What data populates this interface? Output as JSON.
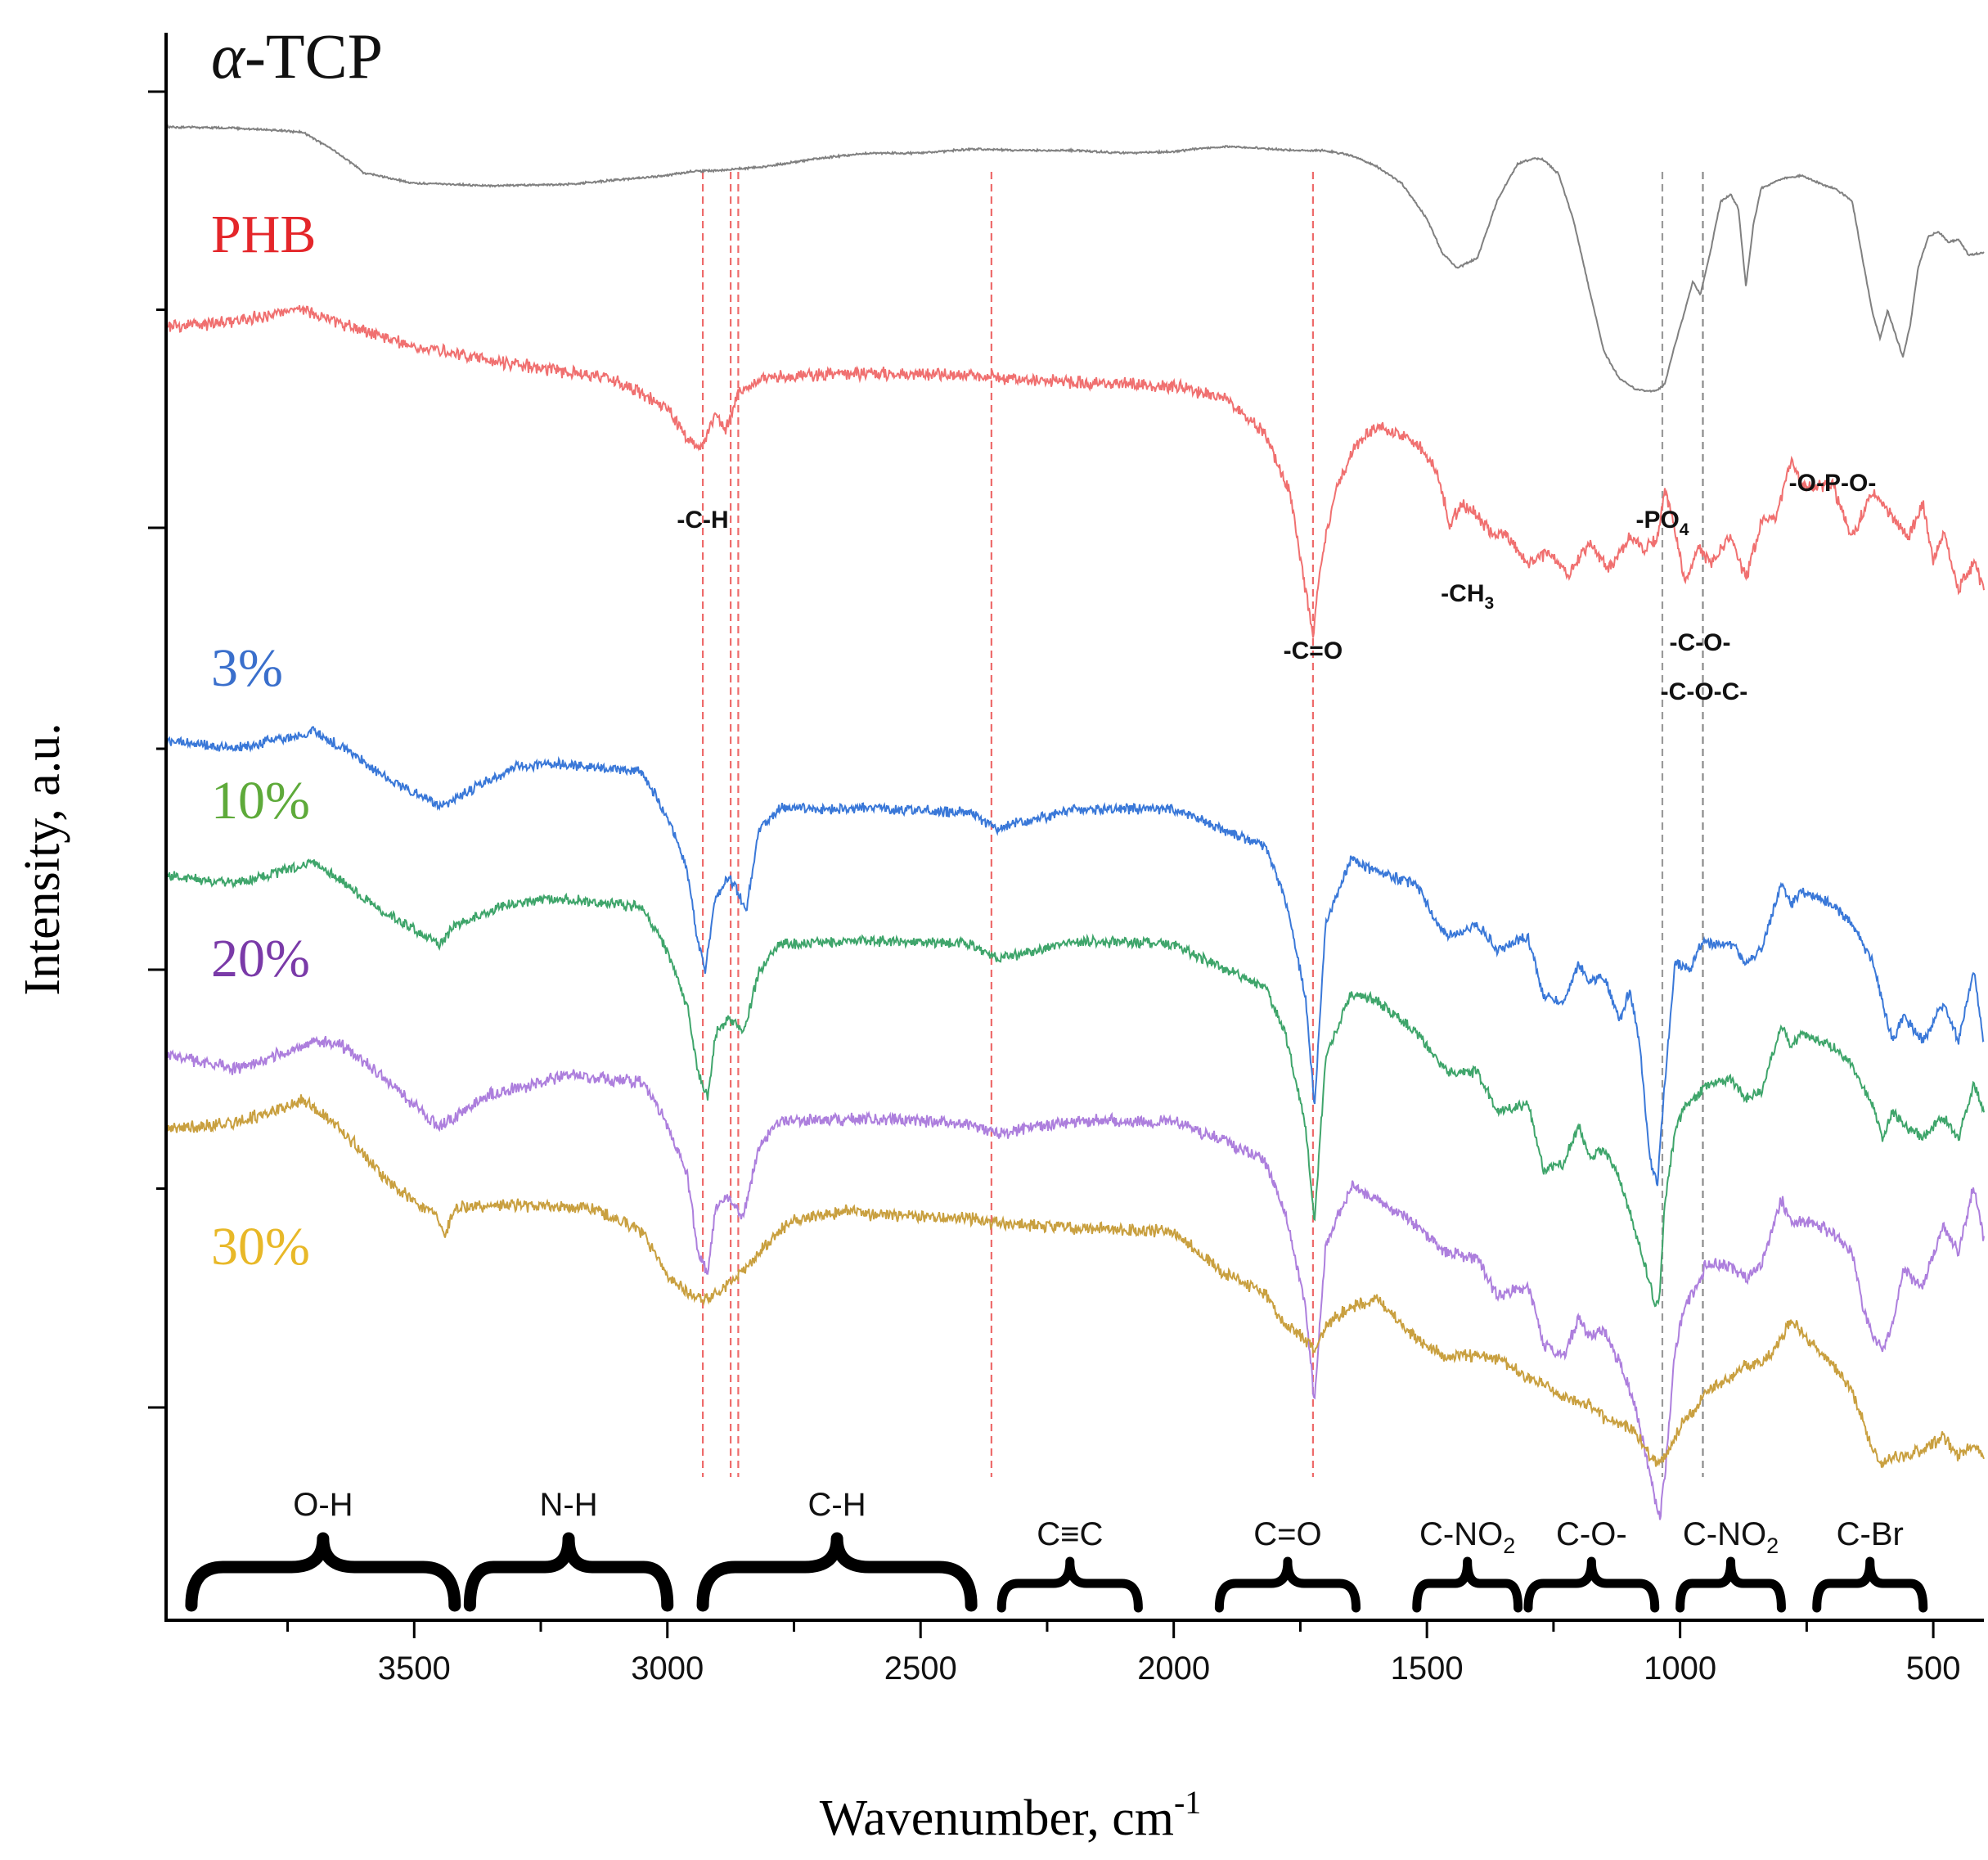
{
  "chart_data": {
    "type": "line",
    "title": "",
    "xlabel": "Wavenumber, cm",
    "xlabel_sup": "-1",
    "ylabel": "Intensity, a.u.",
    "xlim": [
      3990,
      400
    ],
    "x_reversed": true,
    "x_ticks": [
      3500,
      3000,
      2500,
      2000,
      1500,
      1000,
      500
    ],
    "y_ticks": "unlabeled",
    "grid": false,
    "legend": "inline labels at left",
    "series": [
      {
        "name": "α-TCP",
        "name_parts": [
          "α",
          "-TCP"
        ],
        "color": "#808080",
        "label_color": "#111111",
        "noise": 1,
        "x": [
          3990,
          3850,
          3720,
          3650,
          3600,
          3500,
          3350,
          3200,
          3000,
          2950,
          2900,
          2800,
          2700,
          2600,
          2500,
          2400,
          2300,
          2200,
          2100,
          2000,
          1960,
          1900,
          1800,
          1760,
          1700,
          1650,
          1600,
          1550,
          1500,
          1470,
          1440,
          1400,
          1360,
          1320,
          1290,
          1270,
          1240,
          1210,
          1180,
          1150,
          1120,
          1090,
          1060,
          1045,
          1030,
          1010,
          990,
          975,
          960,
          940,
          920,
          900,
          885,
          870,
          855,
          840,
          800,
          760,
          720,
          690,
          660,
          640,
          620,
          605,
          590,
          575,
          560,
          545,
          530,
          510,
          490,
          470,
          450,
          430,
          400
        ],
        "values": [
          0.0,
          -1.0,
          -4.0,
          -20.0,
          -35.0,
          -43.0,
          -45.0,
          -44.0,
          -37.0,
          -34.0,
          -33.5,
          -30.0,
          -24.0,
          -20.0,
          -20.0,
          -17.0,
          -18.0,
          -18.0,
          -20.0,
          -19.0,
          -17.0,
          -15.0,
          -17.0,
          -18.0,
          -18.0,
          -22.0,
          -30.0,
          -43.0,
          -70.0,
          -96.0,
          -108.0,
          -100.0,
          -55.0,
          -28.0,
          -24.0,
          -25.0,
          -36.0,
          -72.0,
          -123.0,
          -172.0,
          -192.0,
          -200.0,
          -202.0,
          -201.0,
          -196.0,
          -166.0,
          -140.0,
          -118.0,
          -128.0,
          -95.0,
          -57.0,
          -52.0,
          -62.0,
          -122.0,
          -74.0,
          -47.0,
          -40.0,
          -37.0,
          -44.0,
          -48.0,
          -57.0,
          -100.0,
          -142.0,
          -162.0,
          -140.0,
          -158.0,
          -176.0,
          -150.0,
          -108.0,
          -84.0,
          -80.0,
          -88.0,
          -86.0,
          -98.0,
          -96.0
        ]
      },
      {
        "name": "PHB",
        "color": "#f07070",
        "label_color": "#e4262a",
        "noise": 6,
        "x": [
          3990,
          3850,
          3720,
          3650,
          3500,
          3300,
          3100,
          3000,
          2960,
          2935,
          2905,
          2885,
          2860,
          2800,
          2600,
          2400,
          2200,
          2000,
          1900,
          1820,
          1770,
          1740,
          1725,
          1710,
          1680,
          1640,
          1600,
          1520,
          1480,
          1455,
          1430,
          1400,
          1380,
          1340,
          1300,
          1260,
          1220,
          1180,
          1140,
          1100,
          1070,
          1045,
          1030,
          1010,
          990,
          965,
          940,
          900,
          870,
          840,
          810,
          780,
          760,
          700,
          660,
          620,
          580,
          550,
          520,
          500,
          480,
          450,
          420,
          400
        ],
        "values": [
          0.0,
          5.0,
          14.0,
          4.0,
          -15.0,
          -28.0,
          -40.0,
          -62.0,
          -86.0,
          -92.0,
          -68.0,
          -78.0,
          -50.0,
          -38.0,
          -35.0,
          -37.0,
          -42.0,
          -45.0,
          -55.0,
          -80.0,
          -128.0,
          -200.0,
          -235.0,
          -180.0,
          -125.0,
          -90.0,
          -75.0,
          -88.0,
          -110.0,
          -150.0,
          -135.0,
          -143.0,
          -155.0,
          -160.0,
          -180.0,
          -172.0,
          -188.0,
          -165.0,
          -185.0,
          -160.0,
          -170.0,
          -160.0,
          -125.0,
          -155.0,
          -195.0,
          -168.0,
          -182.0,
          -158.0,
          -192.0,
          -150.0,
          -145.0,
          -100.0,
          -122.0,
          -120.0,
          -160.0,
          -125.0,
          -145.0,
          -160.0,
          -135.0,
          -180.0,
          -155.0,
          -200.0,
          -180.0,
          -200.0
        ]
      },
      {
        "name": "3%",
        "color": "#3a78d8",
        "label_color": "#3a6fcc",
        "noise": 5,
        "x": [
          3990,
          3850,
          3700,
          3650,
          3550,
          3450,
          3400,
          3300,
          3200,
          3050,
          3000,
          2960,
          2940,
          2925,
          2905,
          2880,
          2860,
          2845,
          2820,
          2780,
          2600,
          2400,
          2350,
          2200,
          2000,
          1900,
          1820,
          1780,
          1740,
          1722,
          1700,
          1650,
          1600,
          1520,
          1480,
          1460,
          1400,
          1360,
          1300,
          1270,
          1230,
          1200,
          1180,
          1150,
          1120,
          1100,
          1080,
          1060,
          1045,
          1030,
          1010,
          980,
          960,
          900,
          870,
          840,
          800,
          780,
          760,
          700,
          660,
          620,
          600,
          580,
          560,
          520,
          480,
          450,
          420,
          400
        ],
        "values": [
          0.0,
          -6.0,
          7.0,
          -3.0,
          -30.0,
          -50.0,
          -40.0,
          -20.0,
          -18.0,
          -24.0,
          -58.0,
          -100.0,
          -155.0,
          -175.0,
          -120.0,
          -105.0,
          -115.0,
          -130.0,
          -70.0,
          -52.0,
          -52.0,
          -55.0,
          -67.0,
          -53.0,
          -52.0,
          -68.0,
          -80.0,
          -120.0,
          -195.0,
          -280.0,
          -140.0,
          -90.0,
          -100.0,
          -110.0,
          -140.0,
          -150.0,
          -140.0,
          -160.0,
          -150.0,
          -195.0,
          -200.0,
          -170.0,
          -185.0,
          -180.0,
          -215.0,
          -190.0,
          -230.0,
          -320.0,
          -340.0,
          -260.0,
          -170.0,
          -175.0,
          -155.0,
          -155.0,
          -170.0,
          -160.0,
          -110.0,
          -125.0,
          -115.0,
          -125.0,
          -140.0,
          -170.0,
          -200.0,
          -230.0,
          -210.0,
          -230.0,
          -200.0,
          -230.0,
          -175.0,
          -230.0
        ]
      },
      {
        "name": "10%",
        "color": "#3fa56b",
        "label_color": "#5eaa3a",
        "noise": 5,
        "x": [
          3990,
          3850,
          3700,
          3650,
          3550,
          3450,
          3420,
          3300,
          3200,
          3050,
          3000,
          2960,
          2940,
          2920,
          2905,
          2880,
          2860,
          2850,
          2820,
          2780,
          2600,
          2400,
          2350,
          2200,
          2000,
          1900,
          1820,
          1780,
          1740,
          1722,
          1700,
          1650,
          1600,
          1520,
          1480,
          1460,
          1400,
          1360,
          1300,
          1270,
          1230,
          1200,
          1180,
          1150,
          1120,
          1090,
          1060,
          1050,
          1040,
          1030,
          1010,
          990,
          970,
          950,
          900,
          870,
          840,
          800,
          780,
          760,
          700,
          660,
          620,
          600,
          580,
          560,
          520,
          480,
          450,
          420,
          400
        ],
        "values": [
          0.0,
          -6.0,
          10.0,
          -3.0,
          -30.0,
          -52.0,
          -38.0,
          -20.0,
          -18.0,
          -24.0,
          -58.0,
          -100.0,
          -150.0,
          -170.0,
          -120.0,
          -110.0,
          -115.0,
          -120.0,
          -75.0,
          -52.0,
          -50.0,
          -52.0,
          -64.0,
          -50.0,
          -52.0,
          -72.0,
          -85.0,
          -120.0,
          -190.0,
          -265.0,
          -140.0,
          -90.0,
          -95.0,
          -120.0,
          -140.0,
          -150.0,
          -150.0,
          -180.0,
          -175.0,
          -225.0,
          -220.0,
          -190.0,
          -215.0,
          -210.0,
          -230.0,
          -270.0,
          -310.0,
          -330.0,
          -320.0,
          -250.0,
          -195.0,
          -175.0,
          -170.0,
          -160.0,
          -155.0,
          -170.0,
          -165.0,
          -115.0,
          -130.0,
          -120.0,
          -130.0,
          -145.0,
          -175.0,
          -200.0,
          -180.0,
          -190.0,
          -200.0,
          -185.0,
          -200.0,
          -160.0,
          -180.0
        ]
      },
      {
        "name": "20%",
        "color": "#ad7fdd",
        "label_color": "#7a3aa8",
        "noise": 6,
        "x": [
          3990,
          3850,
          3700,
          3650,
          3550,
          3450,
          3350,
          3200,
          3050,
          3000,
          2960,
          2940,
          2920,
          2905,
          2880,
          2860,
          2850,
          2820,
          2780,
          2600,
          2400,
          2350,
          2200,
          2000,
          1900,
          1820,
          1780,
          1740,
          1722,
          1700,
          1650,
          1600,
          1520,
          1480,
          1460,
          1400,
          1360,
          1300,
          1270,
          1230,
          1200,
          1180,
          1150,
          1120,
          1090,
          1060,
          1040,
          1030,
          1010,
          990,
          970,
          950,
          900,
          870,
          840,
          800,
          780,
          760,
          700,
          660,
          640,
          620,
          600,
          580,
          560,
          520,
          480,
          450,
          420,
          400
        ],
        "values": [
          0.0,
          -10.0,
          10.0,
          10.0,
          -20.0,
          -55.0,
          -30.0,
          -15.0,
          -20.0,
          -52.0,
          -92.0,
          -150.0,
          -168.0,
          -115.0,
          -108.0,
          -120.0,
          -123.0,
          -70.0,
          -50.0,
          -48.0,
          -52.0,
          -60.0,
          -50.0,
          -50.0,
          -65.0,
          -80.0,
          -120.0,
          -190.0,
          -265.0,
          -145.0,
          -100.0,
          -110.0,
          -130.0,
          -145.0,
          -150.0,
          -155.0,
          -185.0,
          -175.0,
          -220.0,
          -230.0,
          -200.0,
          -215.0,
          -210.0,
          -235.0,
          -265.0,
          -320.0,
          -355.0,
          -320.0,
          -225.0,
          -190.0,
          -180.0,
          -160.0,
          -160.0,
          -170.0,
          -160.0,
          -110.0,
          -130.0,
          -125.0,
          -135.0,
          -150.0,
          -190.0,
          -215.0,
          -225.0,
          -205.0,
          -165.0,
          -175.0,
          -130.0,
          -150.0,
          -100.0,
          -140.0
        ]
      },
      {
        "name": "30%",
        "color": "#c9a040",
        "label_color": "#e8b828",
        "noise": 6,
        "x": [
          3990,
          3850,
          3720,
          3650,
          3550,
          3460,
          3440,
          3420,
          3300,
          3150,
          3050,
          3000,
          2960,
          2930,
          2900,
          2870,
          2850,
          2820,
          2780,
          2750,
          2650,
          2600,
          2400,
          2350,
          2200,
          2000,
          1900,
          1820,
          1780,
          1740,
          1722,
          1700,
          1650,
          1600,
          1520,
          1480,
          1460,
          1400,
          1360,
          1300,
          1270,
          1230,
          1200,
          1180,
          1150,
          1120,
          1090,
          1060,
          1040,
          1030,
          1010,
          990,
          970,
          950,
          900,
          870,
          840,
          800,
          780,
          760,
          700,
          660,
          620,
          600,
          580,
          560,
          520,
          480,
          450,
          420,
          400
        ],
        "values": [
          0.0,
          5.0,
          22.0,
          2.0,
          -40.0,
          -65.0,
          -82.0,
          -60.0,
          -58.0,
          -60.0,
          -78.0,
          -112.0,
          -125.0,
          -130.0,
          -125.0,
          -115.0,
          -110.0,
          -95.0,
          -78.0,
          -70.0,
          -62.0,
          -65.0,
          -68.0,
          -72.0,
          -75.0,
          -78.0,
          -110.0,
          -125.0,
          -150.0,
          -160.0,
          -170.0,
          -150.0,
          -135.0,
          -130.0,
          -160.0,
          -170.0,
          -175.0,
          -172.0,
          -175.0,
          -190.0,
          -195.0,
          -205.0,
          -210.0,
          -210.0,
          -220.0,
          -225.0,
          -230.0,
          -250.0,
          -255.0,
          -250.0,
          -235.0,
          -220.0,
          -215.0,
          -200.0,
          -190.0,
          -180.0,
          -180.0,
          -160.0,
          -145.0,
          -155.0,
          -180.0,
          -200.0,
          -245.0,
          -255.0,
          -250.0,
          -250.0,
          -245.0,
          -235.0,
          -250.0,
          -240.0,
          -250.0
        ]
      }
    ],
    "reference_lines": [
      {
        "x": 2930,
        "color": "#ee6b6b"
      },
      {
        "x": 2875,
        "color": "#ee6b6b"
      },
      {
        "x": 2860,
        "color": "#ee6b6b"
      },
      {
        "x": 2360,
        "color": "#ee6b6b"
      },
      {
        "x": 1725,
        "color": "#ee6b6b"
      },
      {
        "x": 1035,
        "color": "#9a9a9a"
      },
      {
        "x": 955,
        "color": "#8a8a8a"
      }
    ],
    "annotations": [
      {
        "text": "-C-H",
        "x": 2930
      },
      {
        "text": "-PO",
        "sub": "4",
        "x": 1035
      },
      {
        "text": "-O-P-O-",
        "x": 565
      },
      {
        "text": "-CH",
        "sub": "3",
        "x": 1420
      },
      {
        "text": "-C=O",
        "x": 1725
      },
      {
        "text": "-C-O-",
        "x": 770
      },
      {
        "text": "-C-O-C-",
        "x": 975
      }
    ],
    "band_regions": [
      {
        "label": "O-H",
        "x_from": 3940,
        "x_to": 3420
      },
      {
        "label": "N-H",
        "x_from": 3390,
        "x_to": 3000
      },
      {
        "label": "C-H",
        "x_from": 2930,
        "x_to": 2400
      },
      {
        "label": "C≡C",
        "x_from": 2340,
        "x_to": 2070
      },
      {
        "label": "C=O",
        "x_from": 1910,
        "x_to": 1640
      },
      {
        "label": "C-NO",
        "sub": "2",
        "x_from": 1520,
        "x_to": 1320
      },
      {
        "label": "C-O-",
        "x_from": 1300,
        "x_to": 1050
      },
      {
        "label": "C-NO",
        "sub": "2",
        "x_from": 1000,
        "x_to": 800
      },
      {
        "label": "C-Br",
        "x_from": 730,
        "x_to": 520
      }
    ]
  }
}
